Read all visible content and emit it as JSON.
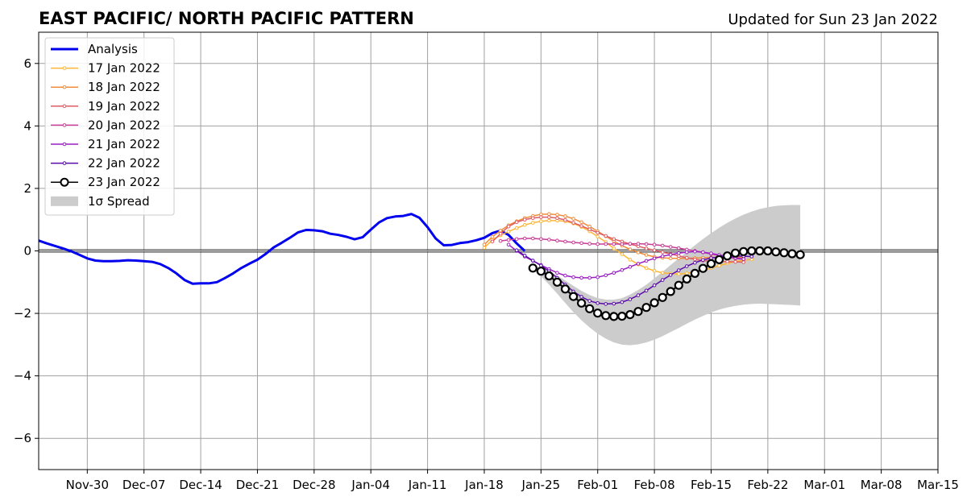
{
  "chart_data": {
    "type": "line",
    "title": "EAST PACIFIC/ NORTH PACIFIC PATTERN",
    "subtitle": "Updated for Sun 23 Jan 2022",
    "xlabel": "",
    "ylabel": "",
    "x_range": [
      "2021-11-24",
      "2022-03-15"
    ],
    "ylim": [
      -7,
      7
    ],
    "y_ticks": [
      -6,
      -4,
      -2,
      0,
      2,
      4,
      6
    ],
    "y_tick_labels": [
      "−6",
      "−4",
      "−2",
      "0",
      "2",
      "4",
      "6"
    ],
    "x_ticks": [
      "2021-11-30",
      "2021-12-07",
      "2021-12-14",
      "2021-12-21",
      "2021-12-28",
      "2022-01-04",
      "2022-01-11",
      "2022-01-18",
      "2022-01-25",
      "2022-02-01",
      "2022-02-08",
      "2022-02-15",
      "2022-02-22",
      "2022-03-01",
      "2022-03-08",
      "2022-03-15"
    ],
    "x_tick_labels": [
      "Nov-30",
      "Dec-07",
      "Dec-14",
      "Dec-21",
      "Dec-28",
      "Jan-04",
      "Jan-11",
      "Jan-18",
      "Jan-25",
      "Feb-01",
      "Feb-08",
      "Feb-15",
      "Feb-22",
      "Mar-01",
      "Mar-08",
      "Mar-15"
    ],
    "grid": true,
    "zero_line": true,
    "legend": {
      "position": "top-left",
      "entries": [
        "Analysis",
        "17 Jan 2022",
        "18 Jan 2022",
        "19 Jan 2022",
        "20 Jan 2022",
        "21 Jan 2022",
        "22 Jan 2022",
        "23 Jan 2022",
        "1σ Spread"
      ]
    },
    "analysis": {
      "name": "Analysis",
      "color": "#0000ee",
      "start": "2021-11-24",
      "values": [
        0.33,
        0.24,
        0.16,
        0.08,
        -0.01,
        -0.12,
        -0.24,
        -0.31,
        -0.33,
        -0.33,
        -0.32,
        -0.3,
        -0.31,
        -0.33,
        -0.35,
        -0.42,
        -0.55,
        -0.72,
        -0.93,
        -1.05,
        -1.04,
        -1.04,
        -1.0,
        -0.87,
        -0.72,
        -0.55,
        -0.41,
        -0.28,
        -0.1,
        0.11,
        0.26,
        0.42,
        0.59,
        0.67,
        0.66,
        0.63,
        0.55,
        0.51,
        0.45,
        0.37,
        0.44,
        0.68,
        0.91,
        1.05,
        1.1,
        1.12,
        1.18,
        1.06,
        0.76,
        0.4,
        0.18,
        0.19,
        0.25,
        0.28,
        0.34,
        0.42,
        0.57,
        0.65,
        0.51,
        0.24,
        0.0
      ]
    },
    "forecasts": [
      {
        "name": "17 Jan 2022",
        "color": "#ffb533",
        "start": "2022-01-18",
        "values": [
          0.1,
          0.35,
          0.5,
          0.62,
          0.73,
          0.83,
          0.9,
          0.95,
          0.97,
          0.97,
          0.95,
          0.88,
          0.77,
          0.63,
          0.46,
          0.28,
          0.08,
          -0.1,
          -0.28,
          -0.43,
          -0.55,
          -0.64,
          -0.7,
          -0.73,
          -0.74,
          -0.72,
          -0.68,
          -0.62,
          -0.55,
          -0.47,
          -0.4,
          -0.34,
          -0.3,
          -0.27
        ]
      },
      {
        "name": "18 Jan 2022",
        "color": "#f08c3c",
        "start": "2022-01-18",
        "values": [
          0.2,
          0.45,
          0.65,
          0.82,
          0.95,
          1.05,
          1.12,
          1.17,
          1.18,
          1.16,
          1.11,
          1.03,
          0.92,
          0.78,
          0.63,
          0.47,
          0.31,
          0.17,
          0.05,
          -0.05,
          -0.13,
          -0.19,
          -0.22,
          -0.24,
          -0.24,
          -0.24,
          -0.23,
          -0.22,
          -0.21,
          -0.2,
          -0.2,
          -0.2,
          -0.21
        ]
      },
      {
        "name": "19 Jan 2022",
        "color": "#e05c64",
        "start": "2022-01-19",
        "values": [
          0.3,
          0.55,
          0.78,
          0.92,
          1.0,
          1.05,
          1.08,
          1.08,
          1.05,
          0.99,
          0.9,
          0.8,
          0.69,
          0.58,
          0.48,
          0.38,
          0.3,
          0.22,
          0.15,
          0.08,
          0.02,
          -0.04,
          -0.1,
          -0.16,
          -0.22,
          -0.27,
          -0.31,
          -0.33,
          -0.34,
          -0.34,
          -0.35,
          -0.36
        ]
      },
      {
        "name": "20 Jan 2022",
        "color": "#c83c96",
        "start": "2022-01-20",
        "values": [
          0.32,
          0.35,
          0.38,
          0.4,
          0.4,
          0.38,
          0.36,
          0.33,
          0.3,
          0.27,
          0.25,
          0.23,
          0.22,
          0.22,
          0.22,
          0.22,
          0.23,
          0.23,
          0.22,
          0.2,
          0.17,
          0.13,
          0.09,
          0.04,
          0.0,
          -0.05,
          -0.1,
          -0.15,
          -0.2,
          -0.24,
          -0.27
        ]
      },
      {
        "name": "21 Jan 2022",
        "color": "#9a1ec3",
        "start": "2022-01-21",
        "values": [
          0.2,
          0.0,
          -0.18,
          -0.32,
          -0.45,
          -0.58,
          -0.7,
          -0.79,
          -0.84,
          -0.86,
          -0.86,
          -0.84,
          -0.78,
          -0.7,
          -0.61,
          -0.51,
          -0.41,
          -0.32,
          -0.24,
          -0.17,
          -0.12,
          -0.07,
          -0.04,
          -0.02,
          -0.04,
          -0.08,
          -0.13,
          -0.18,
          -0.22,
          -0.26
        ]
      },
      {
        "name": "22 Jan 2022",
        "color": "#5a0aaa",
        "start": "2022-01-22",
        "values": [
          0.02,
          -0.15,
          -0.31,
          -0.47,
          -0.65,
          -0.86,
          -1.08,
          -1.3,
          -1.47,
          -1.6,
          -1.67,
          -1.7,
          -1.69,
          -1.64,
          -1.55,
          -1.42,
          -1.27,
          -1.1,
          -0.93,
          -0.77,
          -0.62,
          -0.49,
          -0.38,
          -0.29,
          -0.23,
          -0.19,
          -0.17,
          -0.16,
          -0.17,
          -0.18
        ]
      },
      {
        "name": "23 Jan 2022",
        "color": "#000000",
        "start": "2022-01-24",
        "values": [
          -0.55,
          -0.65,
          -0.8,
          -1.0,
          -1.22,
          -1.46,
          -1.67,
          -1.85,
          -1.99,
          -2.07,
          -2.1,
          -2.09,
          -2.04,
          -1.94,
          -1.81,
          -1.66,
          -1.49,
          -1.3,
          -1.1,
          -0.9,
          -0.72,
          -0.56,
          -0.41,
          -0.28,
          -0.16,
          -0.07,
          -0.02,
          0.0,
          0.0,
          0.0,
          -0.03,
          -0.06,
          -0.09,
          -0.12
        ]
      }
    ],
    "spread": {
      "name": "1σ Spread",
      "color": "#cccccc",
      "start": "2022-01-24",
      "upper": [
        -0.5,
        -0.55,
        -0.65,
        -0.79,
        -0.95,
        -1.12,
        -1.28,
        -1.41,
        -1.51,
        -1.56,
        -1.56,
        -1.51,
        -1.4,
        -1.25,
        -1.08,
        -0.88,
        -0.67,
        -0.45,
        -0.24,
        -0.03,
        0.18,
        0.38,
        0.57,
        0.74,
        0.9,
        1.04,
        1.16,
        1.26,
        1.34,
        1.4,
        1.44,
        1.46,
        1.47,
        1.47
      ],
      "lower": [
        -0.6,
        -0.82,
        -1.08,
        -1.37,
        -1.67,
        -1.96,
        -2.22,
        -2.45,
        -2.65,
        -2.81,
        -2.93,
        -3.0,
        -3.02,
        -2.99,
        -2.93,
        -2.84,
        -2.73,
        -2.6,
        -2.47,
        -2.33,
        -2.2,
        -2.08,
        -1.97,
        -1.88,
        -1.81,
        -1.76,
        -1.72,
        -1.7,
        -1.69,
        -1.7,
        -1.71,
        -1.72,
        -1.73,
        -1.75
      ]
    }
  }
}
